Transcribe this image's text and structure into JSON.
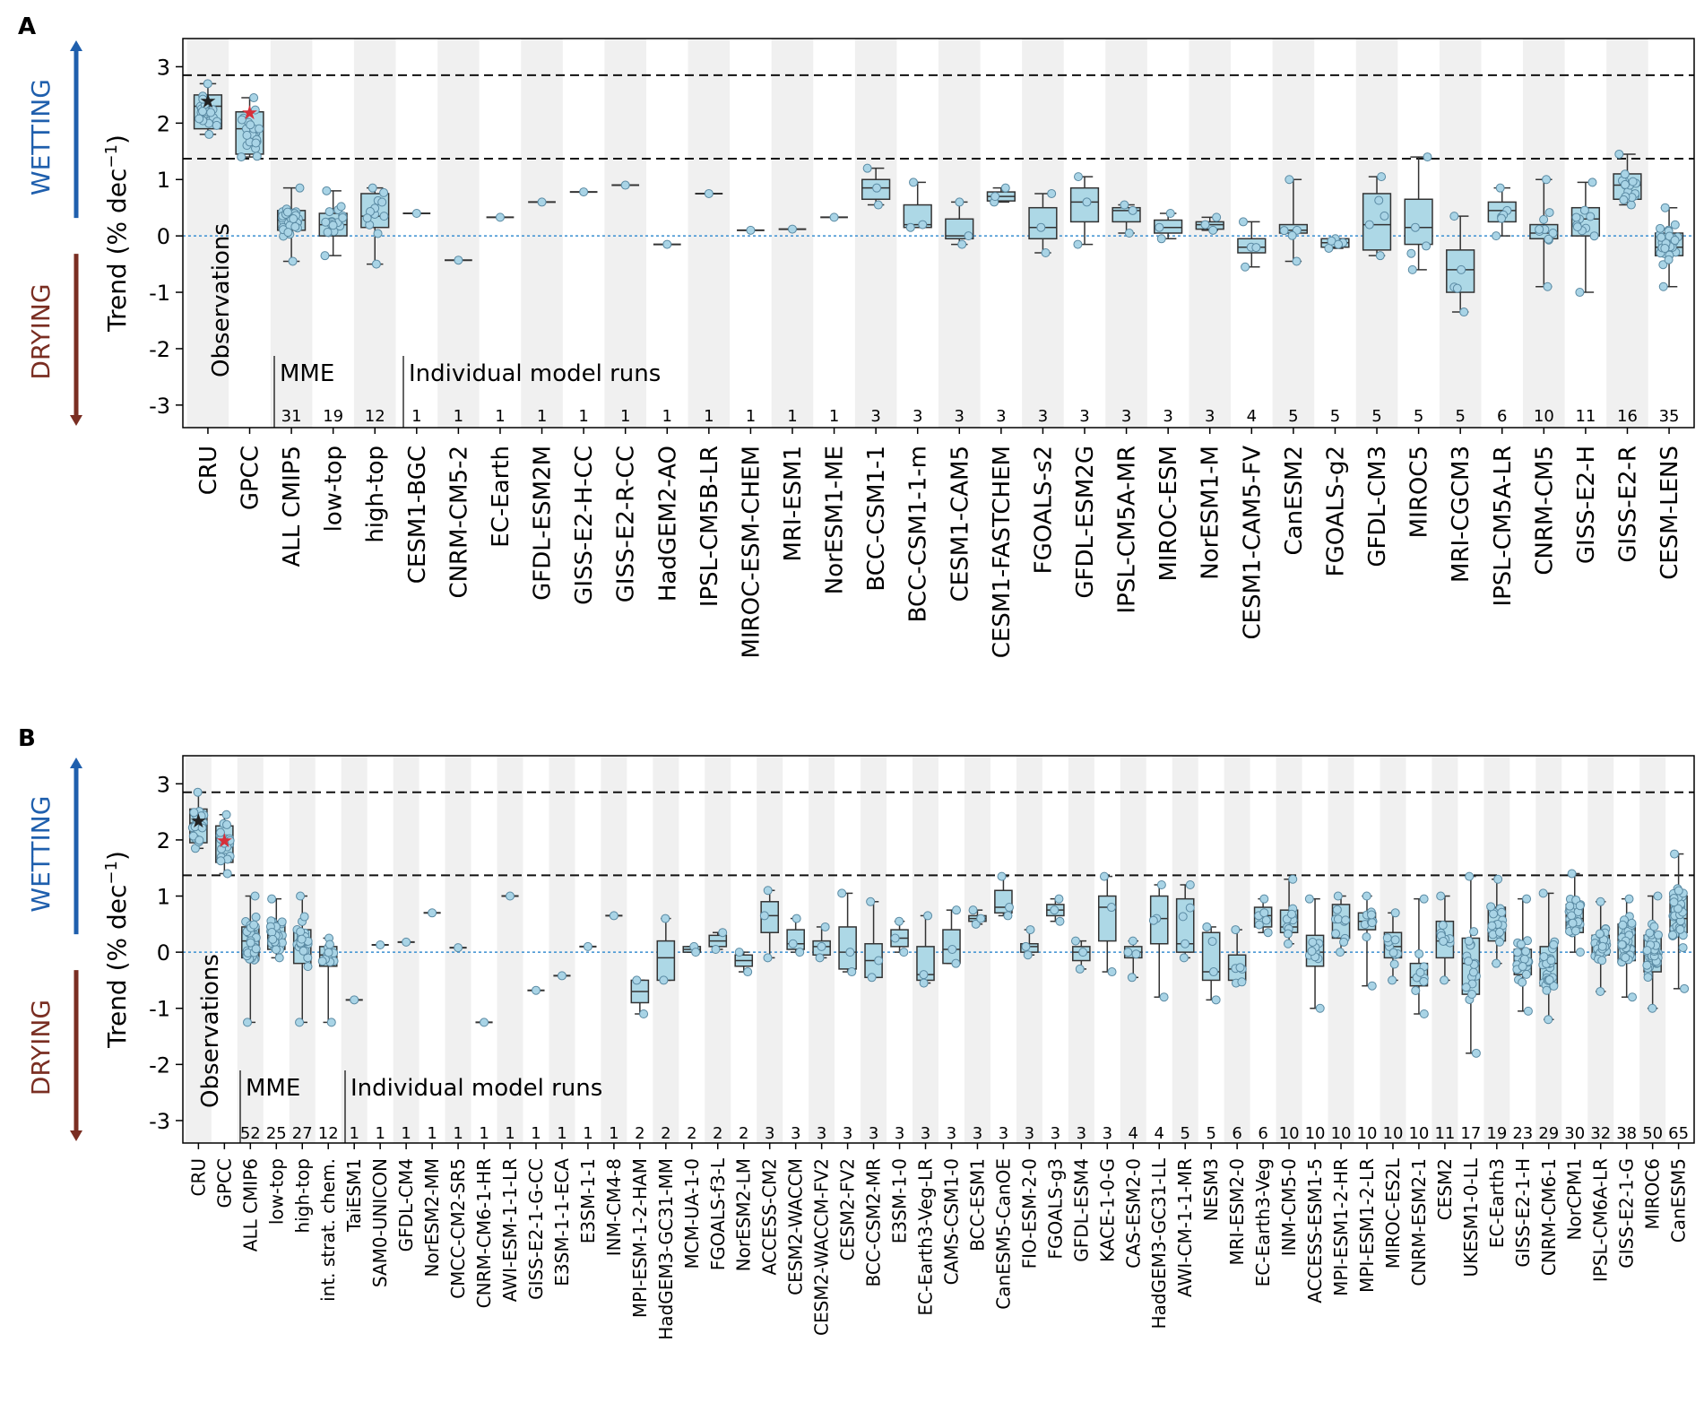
{
  "chart_data": [
    {
      "panel_label": "A",
      "type": "box",
      "ylabel": "Trend (% dec",
      "ylabel_sup": "−1",
      "ylabel_close": ")",
      "ylim": [
        -3.4,
        3.5
      ],
      "yticks": [
        "-3",
        "-2",
        "-1",
        "0",
        "1",
        "2",
        "3"
      ],
      "arrow_labels": {
        "up": "WETTING",
        "down": "DRYING"
      },
      "hlines": [
        2.85,
        1.37
      ],
      "zero_line": 0,
      "group_labels": {
        "observations": "Observations",
        "mme": "MME",
        "individual": "Individual model runs"
      },
      "boxes": [
        {
          "label": "CRU",
          "n": "",
          "q1": 1.9,
          "med": 2.3,
          "q3": 2.5,
          "lo": 1.8,
          "hi": 2.7,
          "star": 2.4,
          "star_color": "#222222"
        },
        {
          "label": "GPCC",
          "n": "",
          "q1": 1.45,
          "med": 1.9,
          "q3": 2.2,
          "lo": 1.4,
          "hi": 2.45,
          "star": 2.2,
          "star_color": "#d6303a"
        },
        {
          "label": "ALL CMIP5",
          "n": "31",
          "q1": 0.1,
          "med": 0.28,
          "q3": 0.45,
          "lo": -0.45,
          "hi": 0.85
        },
        {
          "label": "low-top",
          "n": "19",
          "q1": 0.0,
          "med": 0.2,
          "q3": 0.4,
          "lo": -0.35,
          "hi": 0.8
        },
        {
          "label": "high-top",
          "n": "12",
          "q1": 0.15,
          "med": 0.35,
          "q3": 0.75,
          "lo": -0.5,
          "hi": 0.85
        },
        {
          "label": "CESM1-BGC",
          "n": "1",
          "val": 0.4
        },
        {
          "label": "CNRM-CM5-2",
          "n": "1",
          "val": -0.43
        },
        {
          "label": "EC-Earth",
          "n": "1",
          "val": 0.33
        },
        {
          "label": "GFDL-ESM2M",
          "n": "1",
          "val": 0.6
        },
        {
          "label": "GISS-E2-H-CC",
          "n": "1",
          "val": 0.78
        },
        {
          "label": "GISS-E2-R-CC",
          "n": "1",
          "val": 0.9
        },
        {
          "label": "HadGEM2-AO",
          "n": "1",
          "val": -0.15
        },
        {
          "label": "IPSL-CM5B-LR",
          "n": "1",
          "val": 0.75
        },
        {
          "label": "MIROC-ESM-CHEM",
          "n": "1",
          "val": 0.1
        },
        {
          "label": "MRI-ESM1",
          "n": "1",
          "val": 0.12
        },
        {
          "label": "NorESM1-ME",
          "n": "1",
          "val": 0.33
        },
        {
          "label": "BCC-CSM1-1",
          "n": "3",
          "q1": 0.65,
          "med": 0.85,
          "q3": 1.0,
          "lo": 0.55,
          "hi": 1.2
        },
        {
          "label": "BCC-CSM1-1-m",
          "n": "3",
          "q1": 0.15,
          "med": 0.2,
          "q3": 0.55,
          "lo": 0.15,
          "hi": 0.95
        },
        {
          "label": "CESM1-CAM5",
          "n": "3",
          "q1": -0.05,
          "med": 0.0,
          "q3": 0.3,
          "lo": -0.15,
          "hi": 0.6
        },
        {
          "label": "CESM1-FASTCHEM",
          "n": "3",
          "q1": 0.62,
          "med": 0.7,
          "q3": 0.78,
          "lo": 0.6,
          "hi": 0.85
        },
        {
          "label": "FGOALS-s2",
          "n": "3",
          "q1": -0.05,
          "med": 0.15,
          "q3": 0.5,
          "lo": -0.3,
          "hi": 0.75
        },
        {
          "label": "GFDL-ESM2G",
          "n": "3",
          "q1": 0.25,
          "med": 0.6,
          "q3": 0.85,
          "lo": -0.15,
          "hi": 1.05
        },
        {
          "label": "IPSL-CM5A-MR",
          "n": "3",
          "q1": 0.25,
          "med": 0.45,
          "q3": 0.5,
          "lo": 0.05,
          "hi": 0.55
        },
        {
          "label": "MIROC-ESM",
          "n": "3",
          "q1": 0.05,
          "med": 0.15,
          "q3": 0.28,
          "lo": -0.05,
          "hi": 0.4
        },
        {
          "label": "NorESM1-M",
          "n": "3",
          "q1": 0.12,
          "med": 0.2,
          "q3": 0.25,
          "lo": 0.1,
          "hi": 0.33
        },
        {
          "label": "CESM1-CAM5-FV",
          "n": "4",
          "q1": -0.3,
          "med": -0.2,
          "q3": -0.05,
          "lo": -0.55,
          "hi": 0.25
        },
        {
          "label": "CanESM2",
          "n": "5",
          "q1": 0.05,
          "med": 0.1,
          "q3": 0.2,
          "lo": -0.45,
          "hi": 1.0
        },
        {
          "label": "FGOALS-g2",
          "n": "5",
          "q1": -0.2,
          "med": -0.12,
          "q3": -0.05,
          "lo": -0.22,
          "hi": -0.05
        },
        {
          "label": "GFDL-CM3",
          "n": "5",
          "q1": -0.25,
          "med": 0.2,
          "q3": 0.75,
          "lo": -0.35,
          "hi": 1.05
        },
        {
          "label": "MIROC5",
          "n": "5",
          "q1": -0.15,
          "med": 0.15,
          "q3": 0.65,
          "lo": -0.6,
          "hi": 1.4
        },
        {
          "label": "MRI-CGCM3",
          "n": "5",
          "q1": -1.0,
          "med": -0.6,
          "q3": -0.25,
          "lo": -1.35,
          "hi": 0.35
        },
        {
          "label": "IPSL-CM5A-LR",
          "n": "6",
          "q1": 0.25,
          "med": 0.45,
          "q3": 0.6,
          "lo": 0.0,
          "hi": 0.85
        },
        {
          "label": "CNRM-CM5",
          "n": "10",
          "q1": -0.05,
          "med": 0.05,
          "q3": 0.2,
          "lo": -0.9,
          "hi": 1.0
        },
        {
          "label": "GISS-E2-H",
          "n": "11",
          "q1": 0.0,
          "med": 0.3,
          "q3": 0.5,
          "lo": -1.0,
          "hi": 0.95
        },
        {
          "label": "GISS-E2-R",
          "n": "16",
          "q1": 0.65,
          "med": 0.9,
          "q3": 1.1,
          "lo": 0.55,
          "hi": 1.45
        },
        {
          "label": "CESM-LENS",
          "n": "35",
          "q1": -0.35,
          "med": -0.2,
          "q3": 0.05,
          "lo": -0.9,
          "hi": 0.5
        }
      ]
    },
    {
      "panel_label": "B",
      "type": "box",
      "ylabel": "Trend (% dec",
      "ylabel_sup": "−1",
      "ylabel_close": ")",
      "ylim": [
        -3.4,
        3.5
      ],
      "yticks": [
        "-3",
        "-2",
        "-1",
        "0",
        "1",
        "2",
        "3"
      ],
      "arrow_labels": {
        "up": "WETTING",
        "down": "DRYING"
      },
      "hlines": [
        2.85,
        1.37
      ],
      "zero_line": 0,
      "group_labels": {
        "observations": "Observations",
        "mme": "MME",
        "individual": "Individual model runs"
      },
      "boxes": [
        {
          "label": "CRU",
          "n": "",
          "q1": 1.95,
          "med": 2.3,
          "q3": 2.55,
          "lo": 1.85,
          "hi": 2.85,
          "star": 2.35,
          "star_color": "#222222"
        },
        {
          "label": "GPCC",
          "n": "",
          "q1": 1.6,
          "med": 2.0,
          "q3": 2.25,
          "lo": 1.4,
          "hi": 2.45,
          "star": 2.0,
          "star_color": "#d6303a"
        },
        {
          "label": "ALL CMIP6",
          "n": "52",
          "q1": -0.1,
          "med": 0.2,
          "q3": 0.45,
          "lo": -1.25,
          "hi": 1.0
        },
        {
          "label": "low-top",
          "n": "25",
          "q1": 0.05,
          "med": 0.3,
          "q3": 0.55,
          "lo": -0.1,
          "hi": 0.95
        },
        {
          "label": "high-top",
          "n": "27",
          "q1": -0.2,
          "med": 0.1,
          "q3": 0.4,
          "lo": -1.25,
          "hi": 1.0
        },
        {
          "label": "int. strat. chem.",
          "n": "12",
          "q1": -0.25,
          "med": -0.05,
          "q3": 0.1,
          "lo": -1.25,
          "hi": 0.25
        },
        {
          "label": "TaiESM1",
          "n": "1",
          "val": -0.85
        },
        {
          "label": "SAM0-UNICON",
          "n": "1",
          "val": 0.13
        },
        {
          "label": "GFDL-CM4",
          "n": "1",
          "val": 0.18
        },
        {
          "label": "NorESM2-MM",
          "n": "1",
          "val": 0.7
        },
        {
          "label": "CMCC-CM2-SR5",
          "n": "1",
          "val": 0.08
        },
        {
          "label": "CNRM-CM6-1-HR",
          "n": "1",
          "val": -1.25
        },
        {
          "label": "AWI-ESM-1-1-LR",
          "n": "1",
          "val": 1.0
        },
        {
          "label": "GISS-E2-1-G-CC",
          "n": "1",
          "val": -0.68
        },
        {
          "label": "E3SM-1-1-ECA",
          "n": "1",
          "val": -0.42
        },
        {
          "label": "E3SM-1-1",
          "n": "1",
          "val": 0.1
        },
        {
          "label": "INM-CM4-8",
          "n": "1",
          "val": 0.65
        },
        {
          "label": "MPI-ESM-1-2-HAM",
          "n": "2",
          "q1": -0.9,
          "med": -0.7,
          "q3": -0.5,
          "lo": -1.1,
          "hi": -0.5
        },
        {
          "label": "HadGEM3-GC31-MM",
          "n": "2",
          "q1": -0.5,
          "med": -0.1,
          "q3": 0.2,
          "lo": -0.5,
          "hi": 0.6
        },
        {
          "label": "MCM-UA-1-0",
          "n": "2",
          "q1": 0.0,
          "med": 0.05,
          "q3": 0.1,
          "lo": 0.0,
          "hi": 0.1
        },
        {
          "label": "FGOALS-f3-L",
          "n": "2",
          "q1": 0.1,
          "med": 0.2,
          "q3": 0.3,
          "lo": 0.05,
          "hi": 0.35
        },
        {
          "label": "NorESM2-LM",
          "n": "2",
          "q1": -0.25,
          "med": -0.15,
          "q3": -0.05,
          "lo": -0.35,
          "hi": 0.0
        },
        {
          "label": "ACCESS-CM2",
          "n": "3",
          "q1": 0.35,
          "med": 0.65,
          "q3": 0.9,
          "lo": -0.1,
          "hi": 1.1
        },
        {
          "label": "CESM2-WACCM",
          "n": "3",
          "q1": 0.05,
          "med": 0.15,
          "q3": 0.4,
          "lo": 0.0,
          "hi": 0.6
        },
        {
          "label": "CESM2-WACCM-FV2",
          "n": "3",
          "q1": -0.05,
          "med": 0.1,
          "q3": 0.2,
          "lo": -0.1,
          "hi": 0.45
        },
        {
          "label": "CESM2-FV2",
          "n": "3",
          "q1": -0.3,
          "med": 0.0,
          "q3": 0.45,
          "lo": -0.35,
          "hi": 1.05
        },
        {
          "label": "BCC-CSM2-MR",
          "n": "3",
          "q1": -0.45,
          "med": -0.15,
          "q3": 0.15,
          "lo": -0.45,
          "hi": 0.9
        },
        {
          "label": "E3SM-1-0",
          "n": "3",
          "q1": 0.1,
          "med": 0.25,
          "q3": 0.4,
          "lo": 0.0,
          "hi": 0.55
        },
        {
          "label": "EC-Earth3-Veg-LR",
          "n": "3",
          "q1": -0.5,
          "med": -0.4,
          "q3": 0.1,
          "lo": -0.55,
          "hi": 0.65
        },
        {
          "label": "CAMS-CSM1-0",
          "n": "3",
          "q1": -0.2,
          "med": 0.05,
          "q3": 0.4,
          "lo": -0.2,
          "hi": 0.75
        },
        {
          "label": "BCC-ESM1",
          "n": "3",
          "q1": 0.55,
          "med": 0.6,
          "q3": 0.65,
          "lo": 0.5,
          "hi": 0.75
        },
        {
          "label": "CanESM5-CanOE",
          "n": "3",
          "q1": 0.7,
          "med": 0.8,
          "q3": 1.1,
          "lo": 0.65,
          "hi": 1.35
        },
        {
          "label": "FIO-ESM-2-0",
          "n": "3",
          "q1": 0.0,
          "med": 0.1,
          "q3": 0.15,
          "lo": -0.05,
          "hi": 0.4
        },
        {
          "label": "FGOALS-g3",
          "n": "3",
          "q1": 0.65,
          "med": 0.75,
          "q3": 0.85,
          "lo": 0.55,
          "hi": 0.95
        },
        {
          "label": "GFDL-ESM4",
          "n": "3",
          "q1": -0.15,
          "med": 0.0,
          "q3": 0.1,
          "lo": -0.3,
          "hi": 0.2
        },
        {
          "label": "KACE-1-0-G",
          "n": "3",
          "q1": 0.2,
          "med": 0.8,
          "q3": 1.0,
          "lo": -0.35,
          "hi": 1.35
        },
        {
          "label": "CAS-ESM2-0",
          "n": "4",
          "q1": -0.1,
          "med": 0.0,
          "q3": 0.1,
          "lo": -0.45,
          "hi": 0.2
        },
        {
          "label": "HadGEM3-GC31-LL",
          "n": "4",
          "q1": 0.15,
          "med": 0.6,
          "q3": 1.0,
          "lo": -0.8,
          "hi": 1.2
        },
        {
          "label": "AWI-CM-1-1-MR",
          "n": "5",
          "q1": 0.0,
          "med": 0.15,
          "q3": 0.95,
          "lo": -0.1,
          "hi": 1.2
        },
        {
          "label": "NESM3",
          "n": "5",
          "q1": -0.5,
          "med": -0.35,
          "q3": 0.35,
          "lo": -0.85,
          "hi": 0.45
        },
        {
          "label": "MRI-ESM2-0",
          "n": "6",
          "q1": -0.5,
          "med": -0.3,
          "q3": -0.05,
          "lo": -0.55,
          "hi": 0.4
        },
        {
          "label": "EC-Earth3-Veg",
          "n": "6",
          "q1": 0.45,
          "med": 0.65,
          "q3": 0.8,
          "lo": 0.35,
          "hi": 0.95
        },
        {
          "label": "INM-CM5-0",
          "n": "10",
          "q1": 0.35,
          "med": 0.45,
          "q3": 0.75,
          "lo": 0.15,
          "hi": 1.3
        },
        {
          "label": "ACCESS-ESM1-5",
          "n": "10",
          "q1": -0.25,
          "med": 0.0,
          "q3": 0.3,
          "lo": -1.0,
          "hi": 0.95
        },
        {
          "label": "MPI-ESM1-2-HR",
          "n": "10",
          "q1": 0.25,
          "med": 0.55,
          "q3": 0.85,
          "lo": 0.0,
          "hi": 1.0
        },
        {
          "label": "MPI-ESM1-2-LR",
          "n": "10",
          "q1": 0.4,
          "med": 0.55,
          "q3": 0.7,
          "lo": -0.6,
          "hi": 1.0
        },
        {
          "label": "MIROC-ES2L",
          "n": "10",
          "q1": -0.1,
          "med": 0.1,
          "q3": 0.35,
          "lo": -0.5,
          "hi": 0.7
        },
        {
          "label": "CNRM-ESM2-1",
          "n": "10",
          "q1": -0.6,
          "med": -0.45,
          "q3": -0.2,
          "lo": -1.1,
          "hi": 0.95
        },
        {
          "label": "CESM2",
          "n": "11",
          "q1": -0.1,
          "med": 0.2,
          "q3": 0.55,
          "lo": -0.5,
          "hi": 1.0
        },
        {
          "label": "UKESM1-0-LL",
          "n": "17",
          "q1": -0.75,
          "med": -0.2,
          "q3": 0.25,
          "lo": -1.8,
          "hi": 1.35
        },
        {
          "label": "EC-Earth3",
          "n": "19",
          "q1": 0.2,
          "med": 0.4,
          "q3": 0.8,
          "lo": -0.2,
          "hi": 1.3
        },
        {
          "label": "GISS-E2-1-H",
          "n": "23",
          "q1": -0.4,
          "med": -0.15,
          "q3": 0.05,
          "lo": -1.05,
          "hi": 0.95
        },
        {
          "label": "CNRM-CM6-1",
          "n": "29",
          "q1": -0.6,
          "med": -0.2,
          "q3": 0.1,
          "lo": -1.2,
          "hi": 1.05
        },
        {
          "label": "NorCPM1",
          "n": "30",
          "q1": 0.35,
          "med": 0.6,
          "q3": 0.85,
          "lo": 0.0,
          "hi": 1.4
        },
        {
          "label": "IPSL-CM6A-LR",
          "n": "32",
          "q1": -0.05,
          "med": 0.1,
          "q3": 0.3,
          "lo": -0.7,
          "hi": 0.9
        },
        {
          "label": "GISS-E2-1-G",
          "n": "38",
          "q1": -0.15,
          "med": 0.1,
          "q3": 0.5,
          "lo": -0.8,
          "hi": 0.95
        },
        {
          "label": "MIROC6",
          "n": "50",
          "q1": -0.35,
          "med": -0.05,
          "q3": 0.3,
          "lo": -1.0,
          "hi": 1.0
        },
        {
          "label": "CanESM5",
          "n": "65",
          "q1": 0.35,
          "med": 0.6,
          "q3": 1.0,
          "lo": -0.65,
          "hi": 1.75
        }
      ]
    }
  ],
  "colors": {
    "box_fill": "#add8e6",
    "point_fill": "#a9d4e6",
    "edge": "#333333",
    "up_arrow": "#1f5fad",
    "down_arrow": "#7a2e22",
    "zero_line": "#3a8fd1"
  }
}
